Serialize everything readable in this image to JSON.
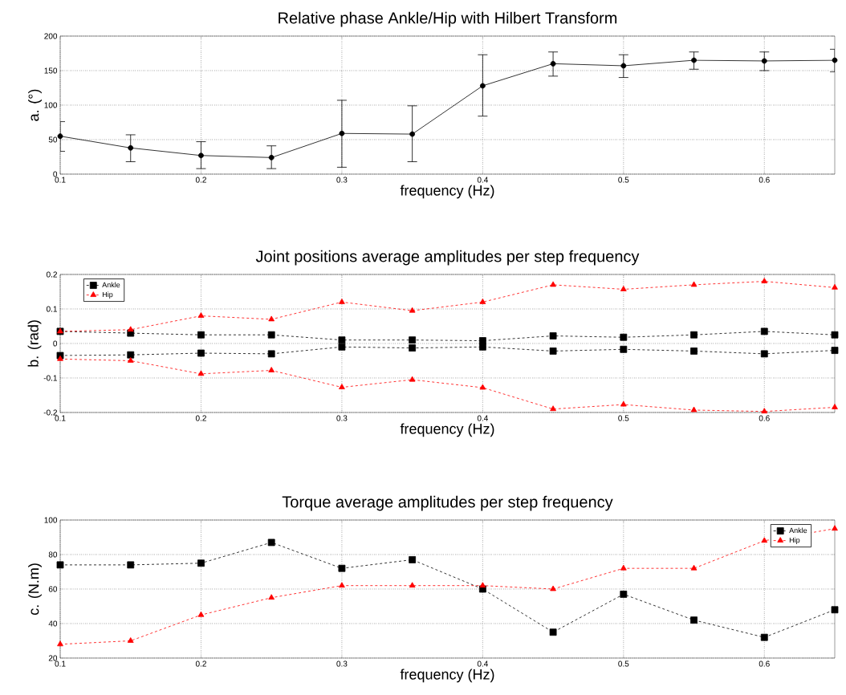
{
  "chart_data": [
    {
      "type": "line",
      "title": "Relative phase Ankle/Hip with Hilbert Transform",
      "xlabel": "frequency (Hz)",
      "ylabel": "a. (°)",
      "x": [
        0.1,
        0.15,
        0.2,
        0.25,
        0.3,
        0.35,
        0.4,
        0.45,
        0.5,
        0.55,
        0.6,
        0.65
      ],
      "series": [
        {
          "color": "#000000",
          "marker": "circle",
          "line_style": "solid",
          "values": [
            55,
            38,
            27,
            24,
            59,
            58,
            128,
            160,
            157,
            165,
            164,
            165
          ],
          "errors": [
            [
              33,
              76
            ],
            [
              18,
              57
            ],
            [
              8,
              47
            ],
            [
              8,
              41
            ],
            [
              10,
              107
            ],
            [
              18,
              99
            ],
            [
              84,
              173
            ],
            [
              142,
              177
            ],
            [
              140,
              173
            ],
            [
              152,
              177
            ],
            [
              150,
              177
            ],
            [
              148,
              181
            ]
          ]
        }
      ],
      "xlim": [
        0.1,
        0.65
      ],
      "xticks": [
        0.1,
        0.2,
        0.3,
        0.4,
        0.5,
        0.6
      ],
      "ylim": [
        0,
        200
      ],
      "yticks": [
        0,
        50,
        100,
        150,
        200
      ],
      "grid": true,
      "legend": false
    },
    {
      "type": "line",
      "title": "Joint positions average amplitudes per step frequency",
      "xlabel": "frequency (Hz)",
      "ylabel": "b. (rad)",
      "x": [
        0.1,
        0.15,
        0.2,
        0.25,
        0.3,
        0.35,
        0.4,
        0.45,
        0.5,
        0.55,
        0.6,
        0.65
      ],
      "series": [
        {
          "name": "Ankle",
          "color": "#000000",
          "marker": "square",
          "line_style": "dashed",
          "values": [
            0.035,
            0.03,
            0.025,
            0.025,
            0.01,
            0.01,
            0.008,
            0.022,
            0.018,
            0.025,
            0.035,
            0.025
          ]
        },
        {
          "name": "Hip",
          "color": "#ff0000",
          "marker": "triangle",
          "line_style": "dashed",
          "values": [
            0.035,
            0.04,
            0.08,
            0.07,
            0.12,
            0.095,
            0.12,
            0.17,
            0.157,
            0.17,
            0.18,
            0.162
          ]
        },
        {
          "color": "#000000",
          "marker": "square",
          "line_style": "dashed",
          "values": [
            -0.035,
            -0.033,
            -0.028,
            -0.03,
            -0.01,
            -0.013,
            -0.01,
            -0.022,
            -0.017,
            -0.022,
            -0.03,
            -0.02
          ]
        },
        {
          "color": "#ff0000",
          "marker": "triangle",
          "line_style": "dashed",
          "values": [
            -0.045,
            -0.05,
            -0.088,
            -0.078,
            -0.127,
            -0.105,
            -0.128,
            -0.19,
            -0.177,
            -0.193,
            -0.197,
            -0.185
          ]
        }
      ],
      "xlim": [
        0.1,
        0.65
      ],
      "xticks": [
        0.1,
        0.2,
        0.3,
        0.4,
        0.5,
        0.6
      ],
      "ylim": [
        -0.2,
        0.2
      ],
      "yticks": [
        -0.2,
        -0.1,
        0,
        0.1,
        0.2
      ],
      "grid": true,
      "legend": "top left"
    },
    {
      "type": "line",
      "title": "Torque average amplitudes per step frequency",
      "xlabel": "frequency (Hz)",
      "ylabel": "c. (N.m)",
      "x": [
        0.1,
        0.15,
        0.2,
        0.25,
        0.3,
        0.35,
        0.4,
        0.45,
        0.5,
        0.55,
        0.6,
        0.65
      ],
      "series": [
        {
          "name": "Ankle",
          "color": "#000000",
          "marker": "square",
          "line_style": "dashed",
          "values": [
            74,
            74,
            75,
            87,
            72,
            77,
            60,
            35,
            57,
            42,
            32,
            48
          ]
        },
        {
          "name": "Hip",
          "color": "#ff0000",
          "marker": "triangle",
          "line_style": "dashed",
          "values": [
            28,
            30,
            45,
            55,
            62,
            62,
            62,
            60,
            72,
            72,
            88,
            95
          ]
        }
      ],
      "xlim": [
        0.1,
        0.65
      ],
      "xticks": [
        0.1,
        0.2,
        0.3,
        0.4,
        0.5,
        0.6
      ],
      "ylim": [
        20,
        100
      ],
      "yticks": [
        20,
        40,
        60,
        80,
        100
      ],
      "grid": true,
      "legend": "top right"
    }
  ]
}
